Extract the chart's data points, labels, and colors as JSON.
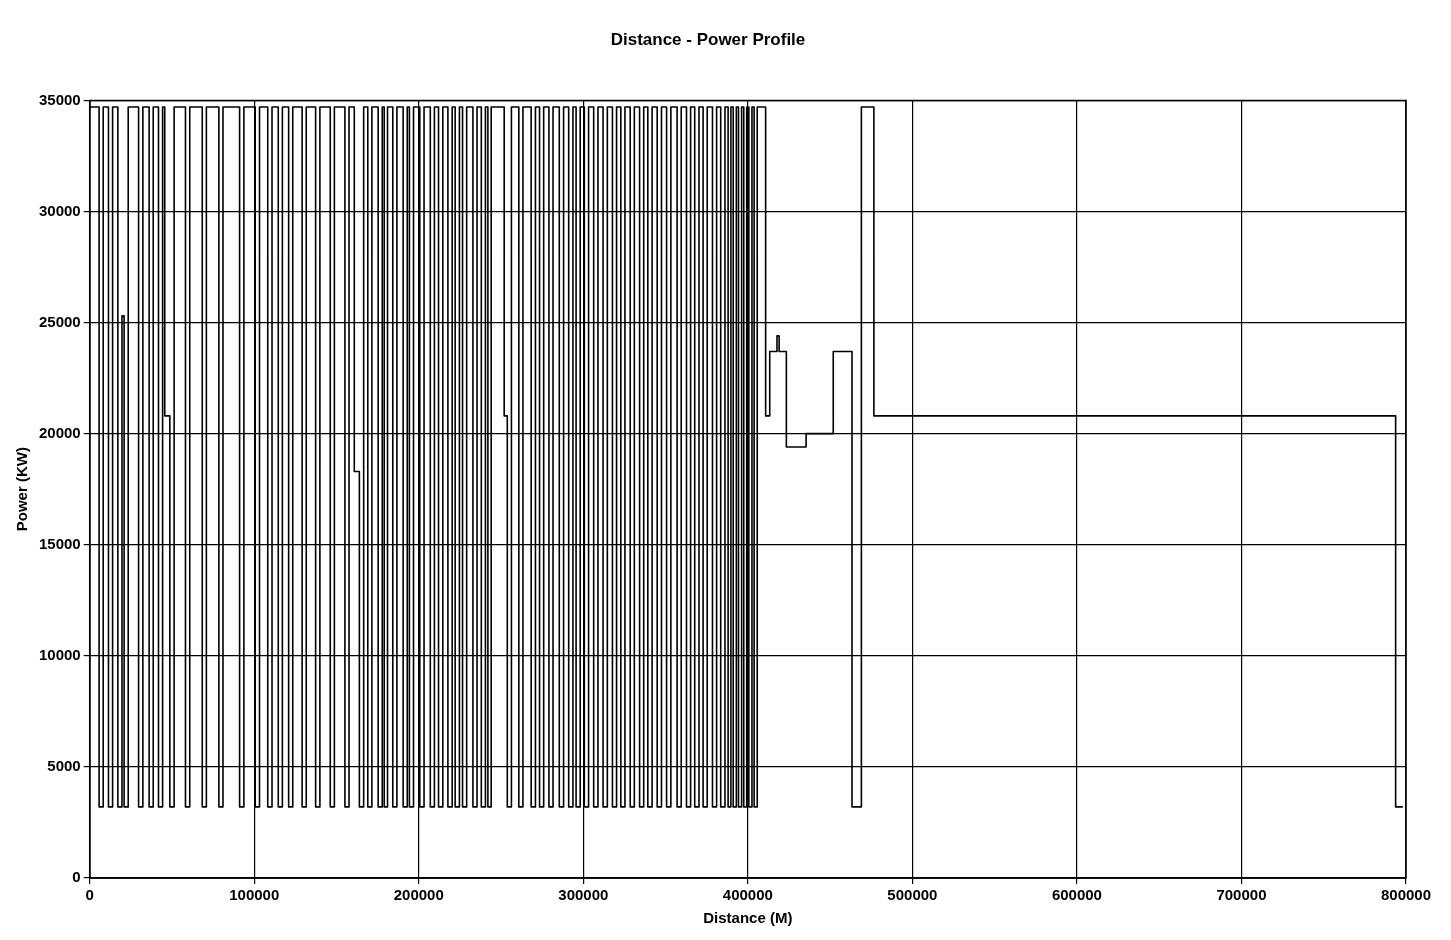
{
  "chart_data": {
    "type": "step",
    "title": "Distance - Power Profile",
    "xlabel": "Distance (M)",
    "ylabel": "Power (KW)",
    "xlim": [
      0,
      800000
    ],
    "ylim": [
      0,
      35000
    ],
    "xticks": [
      0,
      100000,
      200000,
      300000,
      400000,
      500000,
      600000,
      700000,
      800000
    ],
    "yticks": [
      0,
      5000,
      10000,
      15000,
      20000,
      25000,
      30000,
      35000
    ],
    "grid": true,
    "legend": false,
    "marker": "none",
    "line_style": "solid",
    "x": [
      0,
      5700,
      8200,
      11400,
      13900,
      17100,
      19600,
      20900,
      23400,
      29700,
      32300,
      36100,
      38600,
      41800,
      44300,
      45600,
      48700,
      51300,
      58200,
      60800,
      68400,
      70900,
      78500,
      81000,
      91100,
      93700,
      100600,
      103200,
      108200,
      110800,
      114600,
      117100,
      120900,
      123400,
      129100,
      131600,
      137300,
      139900,
      146200,
      148700,
      155100,
      157600,
      160800,
      163900,
      166500,
      169000,
      171500,
      175300,
      177800,
      179000,
      181000,
      184200,
      186700,
      190500,
      193000,
      194300,
      196800,
      200600,
      203200,
      207000,
      209500,
      212000,
      214600,
      217700,
      220300,
      222100,
      224700,
      226600,
      229100,
      232900,
      235400,
      238000,
      240500,
      242000,
      244000,
      251900,
      253800,
      256300,
      260800,
      263300,
      268300,
      270900,
      273400,
      275900,
      279100,
      281600,
      285400,
      288000,
      291100,
      293700,
      295600,
      298100,
      300600,
      303200,
      306300,
      308900,
      312000,
      314600,
      317700,
      320200,
      322800,
      325300,
      328500,
      331000,
      334200,
      336700,
      339200,
      341800,
      344900,
      347500,
      350600,
      353200,
      357000,
      359500,
      362700,
      365200,
      367700,
      370300,
      372800,
      375300,
      378500,
      381000,
      383500,
      386100,
      388000,
      389700,
      391100,
      393000,
      394300,
      396200,
      397500,
      399300,
      400600,
      402500,
      403800,
      405700,
      410800,
      413300,
      417700,
      419000,
      423400,
      435400,
      451900,
      463300,
      469000,
      476600,
      793700,
      798100
    ],
    "series": [
      {
        "color": "#000000",
        "values": [
          34700,
          3200,
          34700,
          3200,
          34700,
          3200,
          25300,
          3200,
          34700,
          3200,
          34700,
          3200,
          34700,
          3200,
          34700,
          20800,
          3200,
          34700,
          3200,
          34700,
          3200,
          34700,
          3200,
          34700,
          3200,
          34700,
          3200,
          34700,
          3200,
          34700,
          3200,
          34700,
          3200,
          34700,
          3200,
          34700,
          3200,
          34700,
          3200,
          34700,
          3200,
          34700,
          18300,
          3200,
          34700,
          3200,
          34700,
          3200,
          34700,
          3200,
          34700,
          3200,
          34700,
          3200,
          34700,
          3200,
          34700,
          3200,
          34700,
          3200,
          34700,
          3200,
          34700,
          3200,
          34700,
          3200,
          34700,
          3200,
          34700,
          3200,
          34700,
          3200,
          34700,
          3200,
          34700,
          20800,
          3200,
          34700,
          3200,
          34700,
          3200,
          34700,
          3200,
          34700,
          3200,
          34700,
          3200,
          34700,
          3200,
          34700,
          3200,
          34700,
          3200,
          34700,
          3200,
          34700,
          3200,
          34700,
          3200,
          34700,
          3200,
          34700,
          3200,
          34700,
          3200,
          34700,
          3200,
          34700,
          3200,
          34700,
          3200,
          34700,
          3200,
          34700,
          3200,
          34700,
          3200,
          34700,
          3200,
          34700,
          3200,
          34700,
          3200,
          34700,
          3200,
          34700,
          3200,
          34700,
          3200,
          34700,
          3200,
          34700,
          3200,
          34700,
          3200,
          34700,
          20800,
          23700,
          24400,
          23700,
          19400,
          20000,
          23700,
          3200,
          34700,
          20800,
          3200,
          3200
        ]
      }
    ]
  }
}
